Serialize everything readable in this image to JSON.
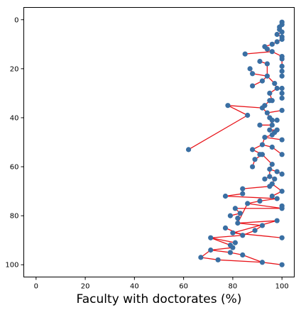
{
  "chart_data": {
    "type": "scatter",
    "title": "",
    "xlabel": "Faculty with doctorates (%)",
    "ylabel": "",
    "xlim": [
      -5,
      105
    ],
    "ylim": [
      105,
      -5
    ],
    "y_inverted": true,
    "grid": false,
    "legend": "none",
    "xticks": [
      0,
      20,
      40,
      60,
      80,
      100
    ],
    "yticks": [
      0,
      20,
      40,
      60,
      80,
      100
    ],
    "point_color": "#3a6fa3",
    "edge_color": "#e8141a",
    "points": [
      [
        100,
        1
      ],
      [
        100,
        2
      ],
      [
        99,
        3
      ],
      [
        99,
        4
      ],
      [
        100,
        5
      ],
      [
        98,
        6
      ],
      [
        100,
        7
      ],
      [
        100,
        8
      ],
      [
        98,
        9
      ],
      [
        96,
        10
      ],
      [
        93,
        11
      ],
      [
        94,
        12
      ],
      [
        96,
        13
      ],
      [
        85,
        14
      ],
      [
        100,
        15
      ],
      [
        100,
        16
      ],
      [
        91,
        17
      ],
      [
        94,
        18
      ],
      [
        100,
        19
      ],
      [
        87,
        20
      ],
      [
        100,
        21
      ],
      [
        88,
        22
      ],
      [
        94,
        23
      ],
      [
        100,
        23
      ],
      [
        92,
        25
      ],
      [
        97,
        26
      ],
      [
        88,
        27
      ],
      [
        98,
        28
      ],
      [
        100,
        28
      ],
      [
        100,
        30
      ],
      [
        95,
        30
      ],
      [
        100,
        32
      ],
      [
        96,
        33
      ],
      [
        95,
        33
      ],
      [
        93,
        35
      ],
      [
        92,
        36
      ],
      [
        78,
        35
      ],
      [
        100,
        37
      ],
      [
        94,
        38
      ],
      [
        86,
        39
      ],
      [
        95,
        40
      ],
      [
        96,
        41
      ],
      [
        98,
        41
      ],
      [
        91,
        43
      ],
      [
        96,
        43
      ],
      [
        95,
        45
      ],
      [
        98,
        45
      ],
      [
        97,
        46
      ],
      [
        96,
        47
      ],
      [
        93,
        48
      ],
      [
        100,
        49
      ],
      [
        92,
        51
      ],
      [
        96,
        52
      ],
      [
        62,
        53
      ],
      [
        88,
        53
      ],
      [
        100,
        55
      ],
      [
        91,
        55
      ],
      [
        92,
        55
      ],
      [
        89,
        57
      ],
      [
        96,
        59
      ],
      [
        88,
        60
      ],
      [
        95,
        61
      ],
      [
        98,
        62
      ],
      [
        100,
        63
      ],
      [
        95,
        64
      ],
      [
        93,
        65
      ],
      [
        97,
        65
      ],
      [
        96,
        67
      ],
      [
        95,
        68
      ],
      [
        84,
        69
      ],
      [
        100,
        70
      ],
      [
        84,
        71
      ],
      [
        77,
        72
      ],
      [
        96,
        72
      ],
      [
        98,
        73
      ],
      [
        91,
        74
      ],
      [
        86,
        75
      ],
      [
        100,
        76
      ],
      [
        100,
        77
      ],
      [
        81,
        77
      ],
      [
        83,
        79
      ],
      [
        79,
        80
      ],
      [
        82,
        81
      ],
      [
        98,
        82
      ],
      [
        82,
        83
      ],
      [
        92,
        84
      ],
      [
        77,
        85
      ],
      [
        89,
        86
      ],
      [
        80,
        87
      ],
      [
        84,
        88
      ],
      [
        100,
        89
      ],
      [
        71,
        89
      ],
      [
        81,
        91
      ],
      [
        79,
        92
      ],
      [
        80,
        93
      ],
      [
        71,
        94
      ],
      [
        79,
        95
      ],
      [
        84,
        96
      ],
      [
        67,
        97
      ],
      [
        74,
        98
      ],
      [
        92,
        99
      ],
      [
        100,
        100
      ]
    ],
    "edges": [
      [
        0,
        1
      ],
      [
        1,
        2
      ],
      [
        2,
        3
      ],
      [
        3,
        4
      ],
      [
        4,
        5
      ],
      [
        5,
        6
      ],
      [
        6,
        7
      ],
      [
        7,
        8
      ],
      [
        8,
        9
      ],
      [
        9,
        10
      ],
      [
        10,
        11
      ],
      [
        11,
        12
      ],
      [
        12,
        14
      ],
      [
        12,
        13
      ],
      [
        14,
        15
      ],
      [
        15,
        18
      ],
      [
        18,
        20
      ],
      [
        20,
        23
      ],
      [
        16,
        17
      ],
      [
        17,
        22
      ],
      [
        19,
        21
      ],
      [
        21,
        22
      ],
      [
        22,
        24
      ],
      [
        22,
        25
      ],
      [
        24,
        26
      ],
      [
        25,
        27
      ],
      [
        27,
        28
      ],
      [
        28,
        29
      ],
      [
        28,
        31
      ],
      [
        27,
        30
      ],
      [
        30,
        32
      ],
      [
        32,
        33
      ],
      [
        33,
        34
      ],
      [
        34,
        35
      ],
      [
        35,
        36
      ],
      [
        36,
        39
      ],
      [
        35,
        38
      ],
      [
        37,
        38
      ],
      [
        38,
        40
      ],
      [
        40,
        41
      ],
      [
        41,
        42
      ],
      [
        40,
        44
      ],
      [
        43,
        44
      ],
      [
        44,
        45
      ],
      [
        45,
        46
      ],
      [
        45,
        47
      ],
      [
        47,
        48
      ],
      [
        48,
        49
      ],
      [
        49,
        51
      ],
      [
        49,
        50
      ],
      [
        51,
        52
      ],
      [
        51,
        54
      ],
      [
        52,
        55
      ],
      [
        39,
        53
      ],
      [
        53,
        53
      ],
      [
        54,
        57
      ],
      [
        56,
        57
      ],
      [
        57,
        58
      ],
      [
        58,
        60
      ],
      [
        57,
        59
      ],
      [
        59,
        61
      ],
      [
        61,
        62
      ],
      [
        62,
        63
      ],
      [
        61,
        64
      ],
      [
        64,
        65
      ],
      [
        64,
        66
      ],
      [
        66,
        67
      ],
      [
        67,
        68
      ],
      [
        68,
        69
      ],
      [
        69,
        71
      ],
      [
        67,
        70
      ],
      [
        70,
        73
      ],
      [
        71,
        72
      ],
      [
        72,
        74
      ],
      [
        74,
        75
      ],
      [
        75,
        76
      ],
      [
        76,
        78
      ],
      [
        77,
        78
      ],
      [
        78,
        79
      ],
      [
        79,
        80
      ],
      [
        80,
        81
      ],
      [
        80,
        82
      ],
      [
        76,
        84
      ],
      [
        84,
        85
      ],
      [
        84,
        83
      ],
      [
        83,
        88
      ],
      [
        85,
        87
      ],
      [
        87,
        89
      ],
      [
        86,
        89
      ],
      [
        88,
        90
      ],
      [
        89,
        91
      ],
      [
        91,
        93
      ],
      [
        93,
        94
      ],
      [
        94,
        95
      ],
      [
        91,
        92
      ],
      [
        95,
        96
      ],
      [
        96,
        97
      ],
      [
        95,
        98
      ],
      [
        98,
        99
      ],
      [
        99,
        100
      ],
      [
        100,
        101
      ],
      [
        97,
        100
      ]
    ]
  }
}
